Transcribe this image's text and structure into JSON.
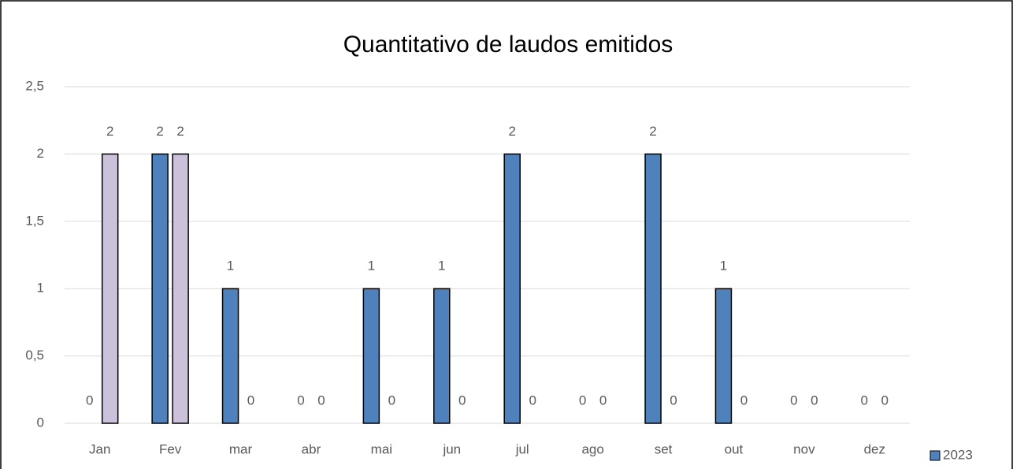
{
  "chart_data": {
    "type": "bar",
    "title": "Quantitativo de laudos emitidos",
    "categories": [
      "Jan",
      "Fev",
      "mar",
      "abr",
      "mai",
      "jun",
      "jul",
      "ago",
      "set",
      "out",
      "nov",
      "dez"
    ],
    "series": [
      {
        "name": "2023",
        "color": "#4f81bd",
        "values": [
          0,
          2,
          1,
          0,
          1,
          1,
          2,
          0,
          2,
          1,
          0,
          0
        ]
      },
      {
        "color": "#ccc1da",
        "values": [
          2,
          2,
          0,
          0,
          0,
          0,
          0,
          0,
          0,
          0,
          0,
          0
        ]
      }
    ],
    "ylim": [
      0,
      2.5
    ],
    "yticks": [
      0,
      {
        "value": 0.5,
        "label": "0,5"
      },
      1,
      {
        "value": 1.5,
        "label": "1,5"
      },
      2,
      {
        "value": 2.5,
        "label": "2,5"
      }
    ],
    "grid": true,
    "legend": "bottom-right"
  }
}
